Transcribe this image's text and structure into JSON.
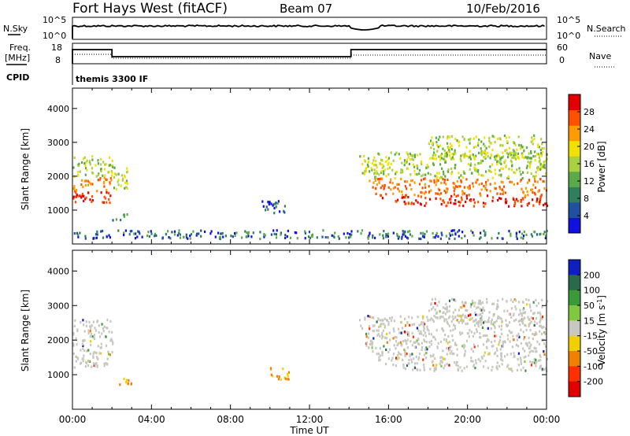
{
  "header": {
    "title": "Fort Hays West (fitACF)",
    "beam": "Beam 07",
    "date": "10/Feb/2016"
  },
  "noise_panel": {
    "left_label": "N.Sky",
    "left_ticks": [
      "10^5",
      "10^0"
    ],
    "right_ticks": [
      "10^5",
      "10^0"
    ],
    "right_label": "N.Search"
  },
  "freq_panel": {
    "left_label_1": "Freq.",
    "left_label_2": "[MHz]",
    "left_ticks": [
      "18",
      "8"
    ],
    "right_ticks": [
      "60",
      "0"
    ],
    "right_label": "Nave"
  },
  "cpid_panel": {
    "label": "CPID",
    "text": "themis 3300 IF"
  },
  "colors": {
    "power_scale": [
      "#1010e0",
      "#2050a0",
      "#2f7f5f",
      "#5aaa4a",
      "#a8d040",
      "#f2e000",
      "#ff9a00",
      "#ff5000",
      "#e00000"
    ],
    "velocity_scale": [
      "#1020c0",
      "#2a6a4a",
      "#3a9a3a",
      "#80c840",
      "#c8c8c0",
      "#f0d000",
      "#f08000",
      "#ff3000",
      "#e00000"
    ]
  },
  "chart_data": [
    {
      "type": "heatmap",
      "name": "power",
      "ylabel": "Slant Range [km]",
      "xlabel": "",
      "yticks": [
        "1000",
        "2000",
        "3000",
        "4000"
      ],
      "ylim": [
        0,
        4600
      ],
      "xlim": [
        0,
        24
      ],
      "colorbar": {
        "label": "Power [dB]",
        "ticks": [
          "4",
          "8",
          "12",
          "16",
          "20",
          "24",
          "28"
        ],
        "range": [
          0,
          30
        ]
      },
      "regions": [
        {
          "t": [
            0.0,
            2.0
          ],
          "range_km": [
            1200,
            2600
          ],
          "level": "high"
        },
        {
          "t": [
            2.0,
            2.8
          ],
          "range_km": [
            1600,
            2300
          ],
          "level": "medium"
        },
        {
          "t": [
            2.0,
            2.8
          ],
          "range_km": [
            700,
            900
          ],
          "level": "low"
        },
        {
          "t": [
            9.5,
            10.8
          ],
          "range_km": [
            900,
            1300
          ],
          "level": "low"
        },
        {
          "t": [
            14.5,
            24.0
          ],
          "range_km": [
            1000,
            2700
          ],
          "level": "high"
        },
        {
          "t": [
            18.0,
            24.0
          ],
          "range_km": [
            2500,
            3200
          ],
          "level": "medium"
        },
        {
          "t": [
            0.0,
            24.0
          ],
          "range_km": [
            150,
            400
          ],
          "level": "low"
        }
      ]
    },
    {
      "type": "heatmap",
      "name": "velocity",
      "ylabel": "Slant Range [km]",
      "xlabel": "Time UT",
      "yticks": [
        "1000",
        "2000",
        "3000",
        "4000"
      ],
      "ylim": [
        0,
        4600
      ],
      "xlim": [
        0,
        24
      ],
      "xticks": [
        "00:00",
        "04:00",
        "08:00",
        "12:00",
        "16:00",
        "20:00",
        "00:00"
      ],
      "colorbar": {
        "label": "Velocity [m s^-1]",
        "ticks": [
          "200",
          "100",
          "50",
          "15",
          "-15",
          "-50",
          "-100",
          "-200"
        ],
        "range": [
          -250,
          250
        ]
      },
      "regions": [
        {
          "t": [
            0.0,
            2.0
          ],
          "range_km": [
            1200,
            2600
          ],
          "level": "ground"
        },
        {
          "t": [
            2.0,
            3.0
          ],
          "range_km": [
            700,
            900
          ],
          "level": "negative"
        },
        {
          "t": [
            10.0,
            11.0
          ],
          "range_km": [
            850,
            1200
          ],
          "level": "negative"
        },
        {
          "t": [
            14.5,
            24.0
          ],
          "range_km": [
            1000,
            2700
          ],
          "level": "ground"
        },
        {
          "t": [
            18.0,
            24.0
          ],
          "range_km": [
            2500,
            3200
          ],
          "level": "ground"
        }
      ]
    }
  ]
}
